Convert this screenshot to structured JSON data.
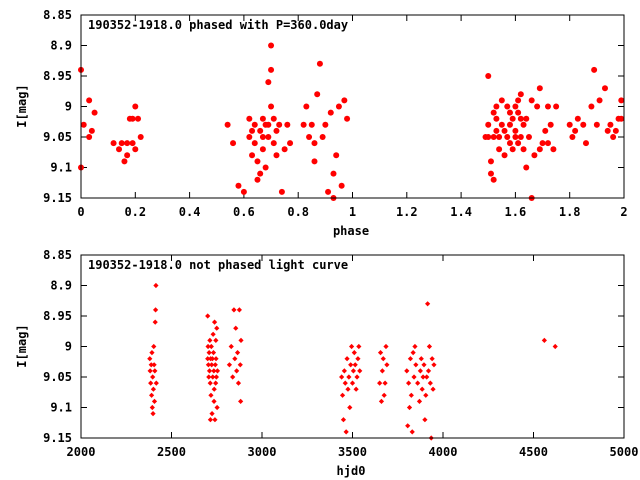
{
  "chart_data": [
    {
      "type": "scatter",
      "title": "190352-1918.0 phased with P=360.0day",
      "xlabel": "phase",
      "ylabel": "I[mag]",
      "xlim": [
        0,
        2
      ],
      "ylim": [
        8.85,
        9.15
      ],
      "y_inverted": true,
      "xticks": [
        "0",
        "0.2",
        "0.4",
        "0.6",
        "0.8",
        "1",
        "1.2",
        "1.4",
        "1.6",
        "1.8",
        "2"
      ],
      "yticks": [
        "8.85",
        "8.9",
        "8.95",
        "9",
        "9.05",
        "9.1",
        "9.15"
      ],
      "marker": "filled-circle",
      "color": "#ff0000",
      "points": [
        [
          0.0,
          8.94
        ],
        [
          0.0,
          9.1
        ],
        [
          0.01,
          9.03
        ],
        [
          0.03,
          9.05
        ],
        [
          0.03,
          8.99
        ],
        [
          0.04,
          9.04
        ],
        [
          0.05,
          9.01
        ],
        [
          0.12,
          9.06
        ],
        [
          0.14,
          9.07
        ],
        [
          0.15,
          9.06
        ],
        [
          0.16,
          9.09
        ],
        [
          0.17,
          9.08
        ],
        [
          0.17,
          9.06
        ],
        [
          0.18,
          9.02
        ],
        [
          0.19,
          9.06
        ],
        [
          0.19,
          9.02
        ],
        [
          0.2,
          9.0
        ],
        [
          0.2,
          9.07
        ],
        [
          0.21,
          9.02
        ],
        [
          0.22,
          9.05
        ],
        [
          0.54,
          9.03
        ],
        [
          0.56,
          9.06
        ],
        [
          0.58,
          9.13
        ],
        [
          0.6,
          9.14
        ],
        [
          0.62,
          9.02
        ],
        [
          0.62,
          9.05
        ],
        [
          0.63,
          9.04
        ],
        [
          0.63,
          9.08
        ],
        [
          0.64,
          9.03
        ],
        [
          0.64,
          9.06
        ],
        [
          0.65,
          9.09
        ],
        [
          0.65,
          9.12
        ],
        [
          0.66,
          9.04
        ],
        [
          0.66,
          9.11
        ],
        [
          0.67,
          9.05
        ],
        [
          0.67,
          9.07
        ],
        [
          0.67,
          9.02
        ],
        [
          0.68,
          9.03
        ],
        [
          0.68,
          9.1
        ],
        [
          0.69,
          9.05
        ],
        [
          0.69,
          9.03
        ],
        [
          0.69,
          8.96
        ],
        [
          0.7,
          9.0
        ],
        [
          0.7,
          8.94
        ],
        [
          0.7,
          8.9
        ],
        [
          0.71,
          9.02
        ],
        [
          0.71,
          9.06
        ],
        [
          0.72,
          9.04
        ],
        [
          0.72,
          9.08
        ],
        [
          0.73,
          9.03
        ],
        [
          0.74,
          9.14
        ],
        [
          0.75,
          9.07
        ],
        [
          0.76,
          9.03
        ],
        [
          0.77,
          9.06
        ],
        [
          0.82,
          9.03
        ],
        [
          0.83,
          9.0
        ],
        [
          0.84,
          9.05
        ],
        [
          0.85,
          9.03
        ],
        [
          0.86,
          9.06
        ],
        [
          0.86,
          9.09
        ],
        [
          0.87,
          8.98
        ],
        [
          0.88,
          8.93
        ],
        [
          0.89,
          9.05
        ],
        [
          0.9,
          9.03
        ],
        [
          0.91,
          9.14
        ],
        [
          0.92,
          9.01
        ],
        [
          0.93,
          9.11
        ],
        [
          0.93,
          9.15
        ],
        [
          0.94,
          9.08
        ],
        [
          0.95,
          9.0
        ],
        [
          0.96,
          9.13
        ],
        [
          0.97,
          8.99
        ],
        [
          0.98,
          9.02
        ],
        [
          1.49,
          9.05
        ],
        [
          1.5,
          9.05
        ],
        [
          1.5,
          9.03
        ],
        [
          1.51,
          9.09
        ],
        [
          1.51,
          9.11
        ],
        [
          1.52,
          9.01
        ],
        [
          1.52,
          9.05
        ],
        [
          1.52,
          9.12
        ],
        [
          1.53,
          9.0
        ],
        [
          1.53,
          9.02
        ],
        [
          1.53,
          9.04
        ],
        [
          1.54,
          9.05
        ],
        [
          1.54,
          9.07
        ],
        [
          1.55,
          9.03
        ],
        [
          1.56,
          9.04
        ],
        [
          1.56,
          9.08
        ],
        [
          1.57,
          9.0
        ],
        [
          1.57,
          9.05
        ],
        [
          1.58,
          9.01
        ],
        [
          1.58,
          9.03
        ],
        [
          1.58,
          9.06
        ],
        [
          1.59,
          9.02
        ],
        [
          1.59,
          9.07
        ],
        [
          1.6,
          9.0
        ],
        [
          1.6,
          9.04
        ],
        [
          1.6,
          9.05
        ],
        [
          1.61,
          9.01
        ],
        [
          1.61,
          9.06
        ],
        [
          1.61,
          8.99
        ],
        [
          1.62,
          9.02
        ],
        [
          1.62,
          9.05
        ],
        [
          1.63,
          9.03
        ],
        [
          1.63,
          9.07
        ],
        [
          1.64,
          9.1
        ],
        [
          1.64,
          9.02
        ],
        [
          1.65,
          9.05
        ],
        [
          1.66,
          9.15
        ],
        [
          1.67,
          9.08
        ],
        [
          1.68,
          9.0
        ],
        [
          1.69,
          9.07
        ],
        [
          1.7,
          9.06
        ],
        [
          1.71,
          9.04
        ],
        [
          1.72,
          9.06
        ],
        [
          1.73,
          9.03
        ],
        [
          1.74,
          9.07
        ],
        [
          1.75,
          9.0
        ],
        [
          1.5,
          8.95
        ],
        [
          1.55,
          8.99
        ],
        [
          1.62,
          8.98
        ],
        [
          1.66,
          8.99
        ],
        [
          1.69,
          8.97
        ],
        [
          1.72,
          9.0
        ],
        [
          1.8,
          9.03
        ],
        [
          1.81,
          9.05
        ],
        [
          1.82,
          9.04
        ],
        [
          1.83,
          9.02
        ],
        [
          1.85,
          9.03
        ],
        [
          1.86,
          9.06
        ],
        [
          1.88,
          9.0
        ],
        [
          1.89,
          8.94
        ],
        [
          1.9,
          9.03
        ],
        [
          1.91,
          8.99
        ],
        [
          1.93,
          8.97
        ],
        [
          1.94,
          9.04
        ],
        [
          1.95,
          9.03
        ],
        [
          1.96,
          9.05
        ],
        [
          1.97,
          9.04
        ],
        [
          1.98,
          9.02
        ],
        [
          1.99,
          9.02
        ],
        [
          1.99,
          8.99
        ]
      ]
    },
    {
      "type": "scatter",
      "title": "190352-1918.0 not phased light curve",
      "xlabel": "hjd0",
      "ylabel": "I[mag]",
      "xlim": [
        2000,
        5000
      ],
      "ylim": [
        8.85,
        9.15
      ],
      "y_inverted": true,
      "xticks": [
        "2000",
        "2500",
        "3000",
        "3500",
        "4000",
        "4500",
        "5000"
      ],
      "yticks": [
        "8.85",
        "8.9",
        "8.95",
        "9",
        "9.05",
        "9.1",
        "9.15"
      ],
      "marker": "diamond",
      "color": "#ff0000",
      "points": [
        [
          2380,
          9.02
        ],
        [
          2382,
          9.04
        ],
        [
          2385,
          9.06
        ],
        [
          2388,
          9.03
        ],
        [
          2390,
          9.08
        ],
        [
          2392,
          9.01
        ],
        [
          2394,
          9.1
        ],
        [
          2396,
          9.05
        ],
        [
          2398,
          9.11
        ],
        [
          2400,
          9.07
        ],
        [
          2402,
          9.0
        ],
        [
          2404,
          9.03
        ],
        [
          2406,
          9.09
        ],
        [
          2408,
          9.04
        ],
        [
          2410,
          8.96
        ],
        [
          2412,
          8.94
        ],
        [
          2414,
          8.9
        ],
        [
          2416,
          9.06
        ],
        [
          2700,
          9.02
        ],
        [
          2702,
          9.0
        ],
        [
          2704,
          9.03
        ],
        [
          2706,
          9.05
        ],
        [
          2708,
          9.01
        ],
        [
          2710,
          9.04
        ],
        [
          2712,
          8.99
        ],
        [
          2714,
          9.06
        ],
        [
          2716,
          9.02
        ],
        [
          2718,
          9.08
        ],
        [
          2720,
          9.0
        ],
        [
          2722,
          9.03
        ],
        [
          2724,
          9.11
        ],
        [
          2726,
          9.02
        ],
        [
          2728,
          9.05
        ],
        [
          2730,
          8.98
        ],
        [
          2732,
          9.01
        ],
        [
          2734,
          9.04
        ],
        [
          2736,
          9.07
        ],
        [
          2738,
          8.96
        ],
        [
          2740,
          9.12
        ],
        [
          2742,
          9.03
        ],
        [
          2744,
          9.06
        ],
        [
          2746,
          9.02
        ],
        [
          2748,
          9.05
        ],
        [
          2750,
          8.97
        ],
        [
          2752,
          9.1
        ],
        [
          2754,
          9.04
        ],
        [
          2700,
          8.95
        ],
        [
          2715,
          9.12
        ],
        [
          2735,
          9.09
        ],
        [
          2745,
          8.99
        ],
        [
          2820,
          9.03
        ],
        [
          2830,
          9.0
        ],
        [
          2838,
          9.05
        ],
        [
          2845,
          8.94
        ],
        [
          2850,
          9.02
        ],
        [
          2855,
          8.97
        ],
        [
          2860,
          9.04
        ],
        [
          2865,
          9.01
        ],
        [
          2870,
          9.06
        ],
        [
          2875,
          8.94
        ],
        [
          2880,
          9.03
        ],
        [
          2882,
          9.09
        ],
        [
          2884,
          8.99
        ],
        [
          3440,
          9.05
        ],
        [
          3445,
          9.08
        ],
        [
          3450,
          9.12
        ],
        [
          3455,
          9.04
        ],
        [
          3460,
          9.06
        ],
        [
          3465,
          9.14
        ],
        [
          3470,
          9.02
        ],
        [
          3475,
          9.07
        ],
        [
          3480,
          9.05
        ],
        [
          3485,
          9.1
        ],
        [
          3490,
          9.03
        ],
        [
          3495,
          9.0
        ],
        [
          3500,
          9.06
        ],
        [
          3505,
          9.04
        ],
        [
          3510,
          9.01
        ],
        [
          3515,
          9.03
        ],
        [
          3520,
          9.07
        ],
        [
          3525,
          9.05
        ],
        [
          3530,
          9.02
        ],
        [
          3535,
          9.0
        ],
        [
          3540,
          9.04
        ],
        [
          3650,
          9.06
        ],
        [
          3655,
          9.01
        ],
        [
          3660,
          9.09
        ],
        [
          3665,
          9.04
        ],
        [
          3670,
          9.02
        ],
        [
          3675,
          9.08
        ],
        [
          3680,
          9.06
        ],
        [
          3685,
          9.0
        ],
        [
          3690,
          9.03
        ],
        [
          3800,
          9.04
        ],
        [
          3805,
          9.13
        ],
        [
          3810,
          9.06
        ],
        [
          3815,
          9.1
        ],
        [
          3820,
          9.02
        ],
        [
          3825,
          9.08
        ],
        [
          3830,
          9.14
        ],
        [
          3835,
          9.01
        ],
        [
          3840,
          9.05
        ],
        [
          3845,
          9.0
        ],
        [
          3850,
          9.03
        ],
        [
          3860,
          9.06
        ],
        [
          3870,
          9.09
        ],
        [
          3875,
          9.04
        ],
        [
          3880,
          9.02
        ],
        [
          3885,
          9.07
        ],
        [
          3890,
          9.05
        ],
        [
          3895,
          9.03
        ],
        [
          3900,
          9.12
        ],
        [
          3905,
          9.08
        ],
        [
          3910,
          9.05
        ],
        [
          3915,
          8.93
        ],
        [
          3920,
          9.04
        ],
        [
          3925,
          9.0
        ],
        [
          3930,
          9.06
        ],
        [
          3935,
          9.15
        ],
        [
          3940,
          9.02
        ],
        [
          3945,
          9.07
        ],
        [
          3950,
          9.03
        ],
        [
          4560,
          8.99
        ],
        [
          4620,
          9.0
        ]
      ]
    }
  ]
}
